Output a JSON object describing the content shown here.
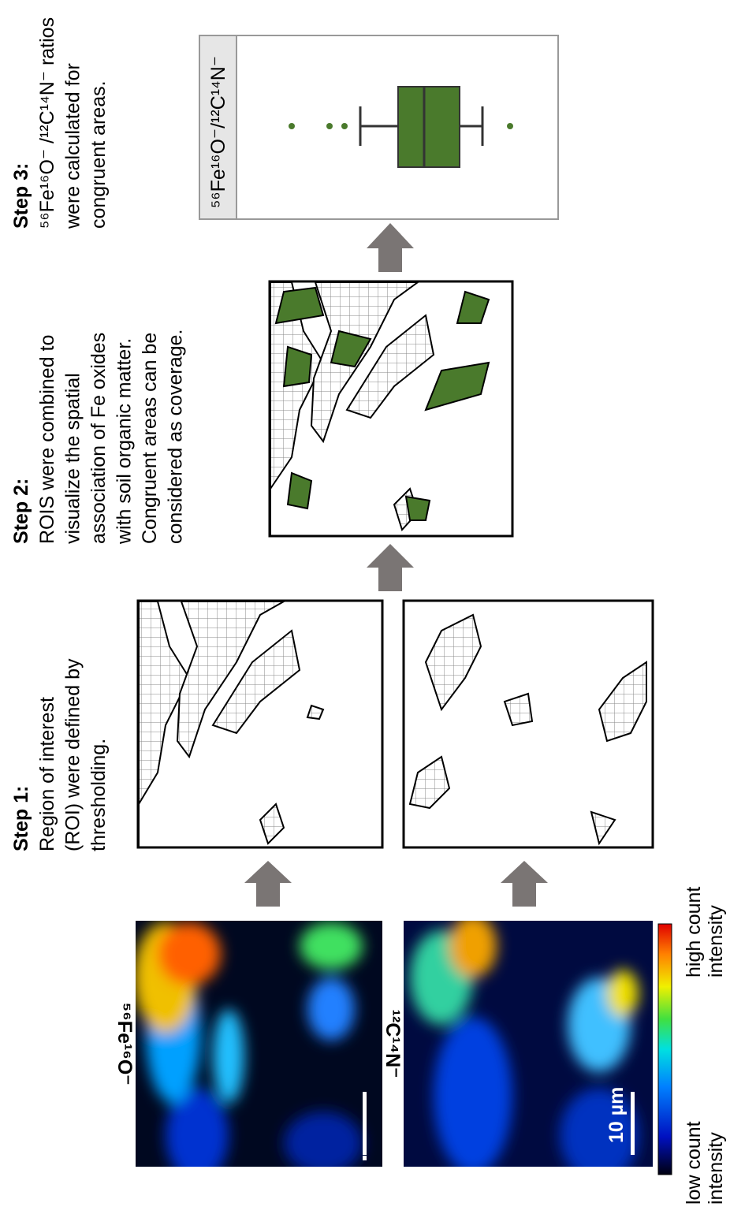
{
  "steps": [
    {
      "title": "Step 1:",
      "lines": [
        "Region of interest",
        "(ROI) were defined by",
        "thresholding."
      ]
    },
    {
      "title": "Step 2:",
      "lines": [
        "ROIS were combined to",
        "visualize the spatial",
        "association of Fe oxides",
        "with soil organic matter.",
        "Congruent areas can be",
        "considered as coverage."
      ]
    },
    {
      "title": "Step 3:",
      "lines": [
        "⁵⁶Fe¹⁶O⁻ /¹²C¹⁴N⁻ ratios",
        "were calculated for",
        "congruent areas."
      ]
    }
  ],
  "images": [
    {
      "label": "⁵⁶Fe¹⁶O⁻"
    },
    {
      "label": "¹²C¹⁴N⁻"
    }
  ],
  "scale_bar": "10 µm",
  "colorbar": {
    "low": [
      "low count",
      "intensity"
    ],
    "high": [
      "high count",
      "intensity"
    ]
  },
  "boxplot": {
    "label": "⁵⁶Fe¹⁶O⁻/¹²C¹⁴N⁻"
  }
}
